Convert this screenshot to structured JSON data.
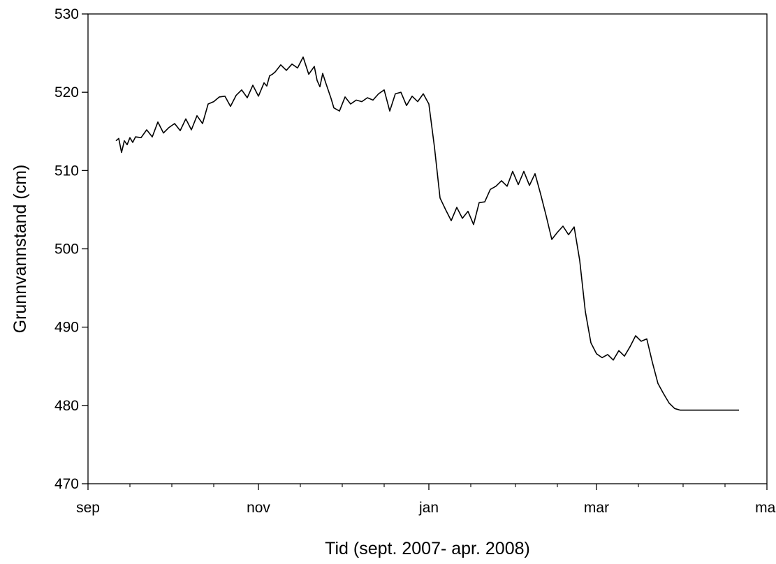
{
  "chart_data": {
    "type": "line",
    "title": "",
    "xlabel": "Tid (sept. 2007- apr. 2008)",
    "ylabel": "Grunnvannstand (cm)",
    "ylim": [
      470,
      530
    ],
    "yticks": [
      470,
      480,
      490,
      500,
      510,
      520,
      530
    ],
    "xlim": [
      "2007-09-01",
      "2008-05-01"
    ],
    "xticks": [
      {
        "date": "2007-09-01",
        "label": "sep"
      },
      {
        "date": "2007-11-01",
        "label": "nov"
      },
      {
        "date": "2008-01-01",
        "label": "jan"
      },
      {
        "date": "2008-03-01",
        "label": "mar"
      },
      {
        "date": "2008-05-01",
        "label": "mai"
      }
    ],
    "x_minor_tick_dates": [
      "2007-09-16",
      "2007-10-01",
      "2007-10-16",
      "2007-11-16",
      "2007-12-01",
      "2007-12-16",
      "2008-01-16",
      "2008-02-01",
      "2008-02-16",
      "2008-03-16",
      "2008-04-01",
      "2008-04-16"
    ],
    "grid": false,
    "series": [
      {
        "x": [
          "2007-09-11",
          "2007-09-12",
          "2007-09-13",
          "2007-09-14",
          "2007-09-15",
          "2007-09-16",
          "2007-09-17",
          "2007-09-18",
          "2007-09-20",
          "2007-09-22",
          "2007-09-24",
          "2007-09-26",
          "2007-09-28",
          "2007-09-30",
          "2007-10-02",
          "2007-10-04",
          "2007-10-06",
          "2007-10-08",
          "2007-10-10",
          "2007-10-12",
          "2007-10-14",
          "2007-10-16",
          "2007-10-18",
          "2007-10-20",
          "2007-10-22",
          "2007-10-24",
          "2007-10-26",
          "2007-10-28",
          "2007-10-30",
          "2007-11-01",
          "2007-11-03",
          "2007-11-04",
          "2007-11-05",
          "2007-11-06",
          "2007-11-07",
          "2007-11-09",
          "2007-11-11",
          "2007-11-13",
          "2007-11-15",
          "2007-11-17",
          "2007-11-19",
          "2007-11-21",
          "2007-11-22",
          "2007-11-23",
          "2007-11-24",
          "2007-11-25",
          "2007-11-27",
          "2007-11-28",
          "2007-11-30",
          "2007-12-02",
          "2007-12-04",
          "2007-12-06",
          "2007-12-08",
          "2007-12-10",
          "2007-12-12",
          "2007-12-14",
          "2007-12-16",
          "2007-12-18",
          "2007-12-20",
          "2007-12-22",
          "2007-12-24",
          "2007-12-26",
          "2007-12-28",
          "2007-12-30",
          "2008-01-01",
          "2008-01-03",
          "2008-01-05",
          "2008-01-07",
          "2008-01-09",
          "2008-01-11",
          "2008-01-13",
          "2008-01-15",
          "2008-01-17",
          "2008-01-19",
          "2008-01-21",
          "2008-01-23",
          "2008-01-25",
          "2008-01-27",
          "2008-01-29",
          "2008-01-31",
          "2008-02-02",
          "2008-02-04",
          "2008-02-06",
          "2008-02-08",
          "2008-02-10",
          "2008-02-12",
          "2008-02-14",
          "2008-02-16",
          "2008-02-18",
          "2008-02-20",
          "2008-02-22",
          "2008-02-24",
          "2008-02-26",
          "2008-02-28",
          "2008-03-01",
          "2008-03-03",
          "2008-03-05",
          "2008-03-07",
          "2008-03-09",
          "2008-03-11",
          "2008-03-13",
          "2008-03-15",
          "2008-03-17",
          "2008-03-19",
          "2008-03-21",
          "2008-03-23",
          "2008-03-25",
          "2008-03-27",
          "2008-03-29",
          "2008-03-31",
          "2008-04-02",
          "2008-04-04",
          "2008-04-06",
          "2008-04-08",
          "2008-04-10",
          "2008-04-12",
          "2008-04-14",
          "2008-04-15",
          "2008-04-17",
          "2008-04-19",
          "2008-04-21"
        ],
        "values": [
          513.8,
          514.1,
          512.3,
          513.8,
          513.3,
          514.2,
          513.6,
          514.3,
          514.2,
          515.2,
          514.3,
          516.2,
          514.8,
          515.5,
          516.0,
          515.1,
          516.6,
          515.2,
          517.0,
          516.0,
          518.5,
          518.8,
          519.4,
          519.5,
          518.2,
          519.6,
          520.3,
          519.3,
          520.9,
          519.5,
          521.2,
          520.8,
          522.1,
          522.3,
          522.6,
          523.5,
          522.8,
          523.6,
          523.1,
          524.5,
          522.3,
          523.3,
          521.5,
          520.7,
          522.4,
          521.3,
          519.2,
          518.0,
          517.6,
          519.4,
          518.5,
          519.0,
          518.8,
          519.3,
          519.0,
          519.8,
          520.3,
          517.6,
          519.8,
          520.0,
          518.3,
          519.5,
          518.8,
          519.8,
          518.5,
          513.0,
          506.5,
          505.0,
          503.6,
          505.3,
          503.9,
          504.8,
          503.1,
          505.9,
          506.0,
          507.6,
          508.0,
          508.7,
          508.0,
          509.9,
          508.2,
          509.9,
          508.1,
          509.6,
          507.0,
          504.2,
          501.2,
          502.1,
          502.9,
          501.8,
          502.8,
          498.5,
          492.0,
          488.0,
          486.6,
          486.1,
          486.5,
          485.8,
          487.0,
          486.3,
          487.5,
          488.9,
          488.2,
          488.5,
          485.5,
          482.8,
          481.5,
          480.3,
          479.6,
          479.4,
          479.4,
          479.4,
          479.4,
          479.4,
          479.4,
          479.4,
          479.4,
          479.4,
          479.4,
          479.4,
          479.4
        ]
      }
    ]
  }
}
